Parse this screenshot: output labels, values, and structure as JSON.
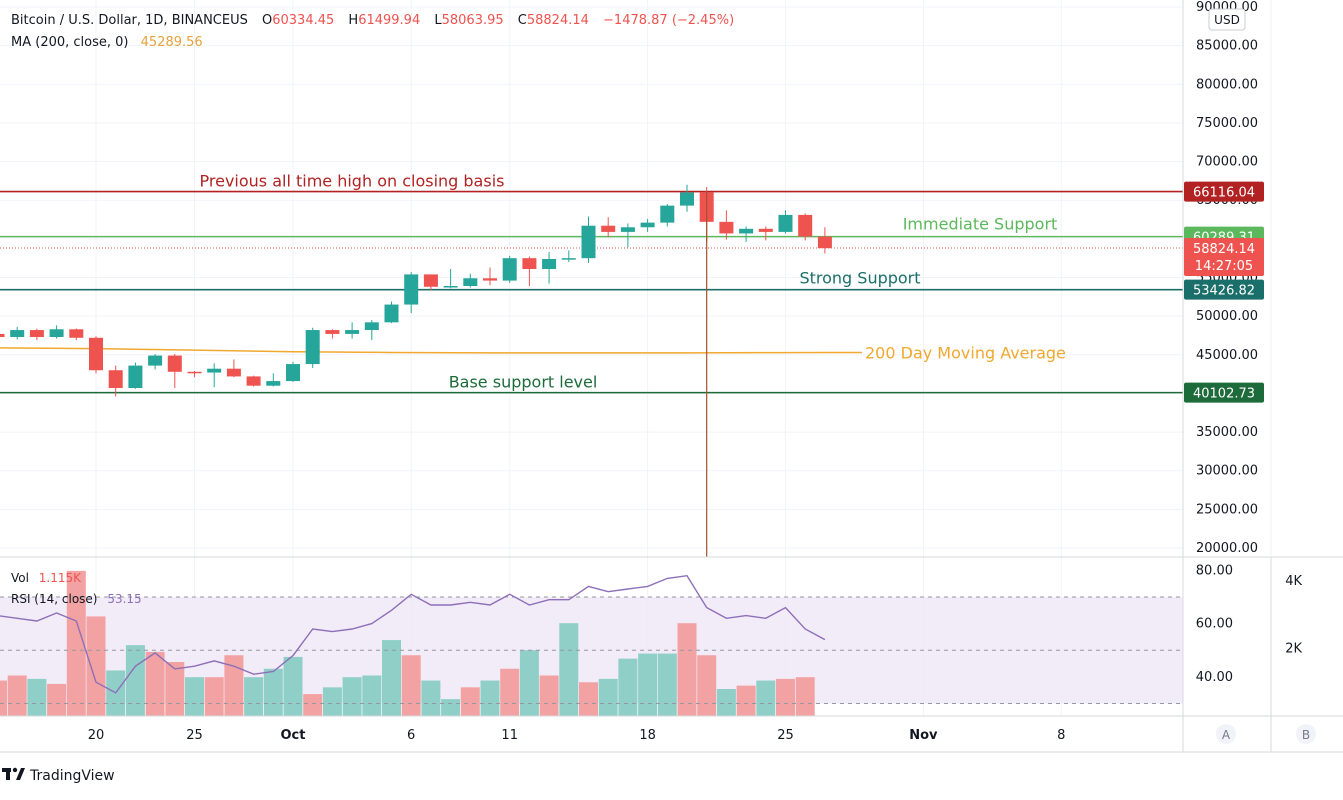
{
  "header": {
    "symbol": "Bitcoin / U.S. Dollar, 1D, BINANCEUS",
    "o_label": "O",
    "o_value": "60334.45",
    "h_label": "H",
    "h_value": "61499.94",
    "l_label": "L",
    "l_value": "58063.95",
    "c_label": "C",
    "c_value": "58824.14",
    "change": "−1478.87 (−2.45%)",
    "ma_label": "MA (200, close, 0)",
    "ma_value": "45289.56"
  },
  "currency_button": "USD",
  "footer": {
    "logo_text": "TradingView",
    "auto_button": "A",
    "b_button": "B"
  },
  "colors": {
    "up": "#26a69a",
    "down": "#ef5350",
    "ath_line": "#b22222",
    "immediate_support": "#5cb85c",
    "strong_support": "#1b6f6a",
    "base_support": "#1d6b3a",
    "ma": "#f0a830",
    "rsi": "#8e6fb8",
    "last_price": "#ef5350"
  },
  "chart_data": [
    {
      "type": "candlestick",
      "title": "Bitcoin / U.S. Dollar, 1D, BINANCEUS",
      "ylim": [
        20000,
        90000
      ],
      "y_ticks": [
        20000,
        25000,
        30000,
        35000,
        40000,
        45000,
        50000,
        55000,
        60000,
        65000,
        70000,
        75000,
        80000,
        85000,
        90000
      ],
      "y_tick_labels": [
        "20000.00",
        "25000.00",
        "30000.00",
        "35000.00",
        "40000.00",
        "45000.00",
        "50000.00",
        "55000.00",
        "60000.00",
        "65000.00",
        "70000.00",
        "75000.00",
        "80000.00",
        "85000.00",
        "90000.00"
      ],
      "x_tick_labels": [
        {
          "label": "20",
          "day": 20
        },
        {
          "label": "25",
          "day": 25
        },
        {
          "label": "Oct",
          "day": 30
        },
        {
          "label": "6",
          "day": 36
        },
        {
          "label": "11",
          "day": 41
        },
        {
          "label": "18",
          "day": 48
        },
        {
          "label": "25",
          "day": 55
        },
        {
          "label": "Nov",
          "day": 62
        },
        {
          "label": "8",
          "day": 69
        }
      ],
      "x_axis_note": "day = days since Sep 1 (Oct 1 = 30)",
      "candles": [
        {
          "day": 15,
          "o": 47700,
          "h": 48500,
          "l": 46800,
          "c": 47300
        },
        {
          "day": 16,
          "o": 47300,
          "h": 48600,
          "l": 47000,
          "c": 48200
        },
        {
          "day": 17,
          "o": 48200,
          "h": 48400,
          "l": 46900,
          "c": 47300
        },
        {
          "day": 18,
          "o": 47300,
          "h": 48800,
          "l": 47100,
          "c": 48300
        },
        {
          "day": 19,
          "o": 48300,
          "h": 48400,
          "l": 46900,
          "c": 47200
        },
        {
          "day": 20,
          "o": 47200,
          "h": 47400,
          "l": 42600,
          "c": 43000
        },
        {
          "day": 21,
          "o": 43000,
          "h": 43600,
          "l": 39600,
          "c": 40700
        },
        {
          "day": 22,
          "o": 40700,
          "h": 44000,
          "l": 40600,
          "c": 43600
        },
        {
          "day": 23,
          "o": 43600,
          "h": 45100,
          "l": 43100,
          "c": 44900
        },
        {
          "day": 24,
          "o": 44900,
          "h": 45100,
          "l": 40700,
          "c": 42800
        },
        {
          "day": 25,
          "o": 42800,
          "h": 42900,
          "l": 42100,
          "c": 42700
        },
        {
          "day": 26,
          "o": 42700,
          "h": 43900,
          "l": 40800,
          "c": 43200
        },
        {
          "day": 27,
          "o": 43200,
          "h": 44400,
          "l": 42100,
          "c": 42200
        },
        {
          "day": 28,
          "o": 42200,
          "h": 42300,
          "l": 40900,
          "c": 41000
        },
        {
          "day": 29,
          "o": 41000,
          "h": 42600,
          "l": 40900,
          "c": 41600
        },
        {
          "day": 30,
          "o": 41600,
          "h": 44100,
          "l": 41500,
          "c": 43800
        },
        {
          "day": 31,
          "o": 43800,
          "h": 48500,
          "l": 43300,
          "c": 48200
        },
        {
          "day": 32,
          "o": 48200,
          "h": 48300,
          "l": 47100,
          "c": 47700
        },
        {
          "day": 33,
          "o": 47700,
          "h": 49200,
          "l": 47100,
          "c": 48200
        },
        {
          "day": 34,
          "o": 48200,
          "h": 49500,
          "l": 46900,
          "c": 49200
        },
        {
          "day": 35,
          "o": 49200,
          "h": 51900,
          "l": 49100,
          "c": 51500
        },
        {
          "day": 36,
          "o": 51500,
          "h": 55700,
          "l": 50400,
          "c": 55400
        },
        {
          "day": 37,
          "o": 55400,
          "h": 55400,
          "l": 53300,
          "c": 53800
        },
        {
          "day": 38,
          "o": 53800,
          "h": 56100,
          "l": 53600,
          "c": 53900
        },
        {
          "day": 39,
          "o": 53900,
          "h": 55500,
          "l": 53700,
          "c": 54900
        },
        {
          "day": 40,
          "o": 54900,
          "h": 56300,
          "l": 54000,
          "c": 54600
        },
        {
          "day": 41,
          "o": 54600,
          "h": 57800,
          "l": 54300,
          "c": 57500
        },
        {
          "day": 42,
          "o": 57500,
          "h": 57700,
          "l": 53900,
          "c": 56100
        },
        {
          "day": 43,
          "o": 56100,
          "h": 58300,
          "l": 54200,
          "c": 57400
        },
        {
          "day": 44,
          "o": 57400,
          "h": 58500,
          "l": 57000,
          "c": 57500
        },
        {
          "day": 45,
          "o": 57500,
          "h": 62900,
          "l": 56900,
          "c": 61700
        },
        {
          "day": 46,
          "o": 61700,
          "h": 62800,
          "l": 60200,
          "c": 60900
        },
        {
          "day": 47,
          "o": 60900,
          "h": 62000,
          "l": 58900,
          "c": 61500
        },
        {
          "day": 48,
          "o": 61500,
          "h": 62600,
          "l": 60900,
          "c": 62100
        },
        {
          "day": 49,
          "o": 62100,
          "h": 64500,
          "l": 61600,
          "c": 64300
        },
        {
          "day": 50,
          "o": 64300,
          "h": 67000,
          "l": 63500,
          "c": 66000
        },
        {
          "day": 51,
          "o": 66000,
          "h": 66700,
          "l": 59600,
          "c": 62200
        },
        {
          "day": 52,
          "o": 62200,
          "h": 63700,
          "l": 59900,
          "c": 60700
        },
        {
          "day": 53,
          "o": 60700,
          "h": 61600,
          "l": 59600,
          "c": 61300
        },
        {
          "day": 54,
          "o": 61300,
          "h": 61600,
          "l": 59800,
          "c": 60900
        },
        {
          "day": 55,
          "o": 60900,
          "h": 63700,
          "l": 60700,
          "c": 63100
        },
        {
          "day": 56,
          "o": 63100,
          "h": 63300,
          "l": 59800,
          "c": 60300
        },
        {
          "day": 57,
          "o": 60300,
          "h": 61500,
          "l": 58100,
          "c": 58800
        }
      ],
      "levels": [
        {
          "value": 66116.04,
          "label": "66116.04",
          "annotation": "Previous all time high on closing basis",
          "color_key": "ath_line"
        },
        {
          "value": 60289.31,
          "label": "60289.31",
          "annotation": "Immediate Support",
          "color_key": "immediate_support"
        },
        {
          "value": 53426.82,
          "label": "53426.82",
          "annotation": "Strong Support",
          "color_key": "strong_support"
        },
        {
          "value": 40102.73,
          "label": "40102.73",
          "annotation": "Base support level",
          "color_key": "base_support"
        }
      ],
      "last_price": {
        "value": 58824.14,
        "label": "58824.14",
        "countdown": "14:27:05"
      },
      "moving_average": {
        "name": "MA (200, close, 0)",
        "annotation": "200 Day Moving Average",
        "points": [
          [
            15,
            45900
          ],
          [
            20,
            45800
          ],
          [
            25,
            45600
          ],
          [
            30,
            45400
          ],
          [
            35,
            45300
          ],
          [
            40,
            45250
          ],
          [
            45,
            45250
          ],
          [
            50,
            45250
          ],
          [
            55,
            45280
          ],
          [
            57,
            45290
          ]
        ]
      },
      "marker_day": 51
    },
    {
      "type": "bar",
      "title": "Vol",
      "value_label": "1.115K",
      "ylim": [
        0,
        4500
      ],
      "y_ticks": [
        2000,
        4000
      ],
      "y_tick_labels": [
        "2K",
        "4K"
      ],
      "values": [
        {
          "day": 15,
          "v": 1050,
          "up": false
        },
        {
          "day": 16,
          "v": 1200,
          "up": false
        },
        {
          "day": 17,
          "v": 1100,
          "up": true
        },
        {
          "day": 18,
          "v": 950,
          "up": false
        },
        {
          "day": 19,
          "v": 4300,
          "up": false
        },
        {
          "day": 20,
          "v": 2950,
          "up": false
        },
        {
          "day": 21,
          "v": 1350,
          "up": true
        },
        {
          "day": 22,
          "v": 2100,
          "up": true
        },
        {
          "day": 23,
          "v": 1900,
          "up": false
        },
        {
          "day": 24,
          "v": 1600,
          "up": false
        },
        {
          "day": 25,
          "v": 1150,
          "up": true
        },
        {
          "day": 26,
          "v": 1150,
          "up": false
        },
        {
          "day": 27,
          "v": 1800,
          "up": false
        },
        {
          "day": 28,
          "v": 1150,
          "up": true
        },
        {
          "day": 29,
          "v": 1400,
          "up": true
        },
        {
          "day": 30,
          "v": 1750,
          "up": true
        },
        {
          "day": 31,
          "v": 650,
          "up": false
        },
        {
          "day": 32,
          "v": 850,
          "up": true
        },
        {
          "day": 33,
          "v": 1150,
          "up": true
        },
        {
          "day": 34,
          "v": 1200,
          "up": true
        },
        {
          "day": 35,
          "v": 2250,
          "up": true
        },
        {
          "day": 36,
          "v": 1800,
          "up": false
        },
        {
          "day": 37,
          "v": 1050,
          "up": true
        },
        {
          "day": 38,
          "v": 500,
          "up": true
        },
        {
          "day": 39,
          "v": 850,
          "up": false
        },
        {
          "day": 40,
          "v": 1050,
          "up": true
        },
        {
          "day": 41,
          "v": 1400,
          "up": false
        },
        {
          "day": 42,
          "v": 1950,
          "up": true
        },
        {
          "day": 43,
          "v": 1200,
          "up": false
        },
        {
          "day": 44,
          "v": 2750,
          "up": true
        },
        {
          "day": 45,
          "v": 1000,
          "up": false
        },
        {
          "day": 46,
          "v": 1100,
          "up": true
        },
        {
          "day": 47,
          "v": 1700,
          "up": true
        },
        {
          "day": 48,
          "v": 1850,
          "up": true
        },
        {
          "day": 49,
          "v": 1850,
          "up": true
        },
        {
          "day": 50,
          "v": 2750,
          "up": false
        },
        {
          "day": 51,
          "v": 1800,
          "up": false
        },
        {
          "day": 52,
          "v": 800,
          "up": true
        },
        {
          "day": 53,
          "v": 900,
          "up": false
        },
        {
          "day": 54,
          "v": 1050,
          "up": true
        },
        {
          "day": 55,
          "v": 1100,
          "up": false
        },
        {
          "day": 56,
          "v": 1150,
          "up": false
        }
      ]
    },
    {
      "type": "line",
      "title": "RSI (14, close)",
      "value_label": "53.15",
      "ylim": [
        28,
        82
      ],
      "y_ticks": [
        40,
        60,
        80
      ],
      "y_tick_labels": [
        "40.00",
        "60.00",
        "80.00"
      ],
      "bands": [
        30,
        70
      ],
      "points": [
        [
          15,
          63
        ],
        [
          16,
          62
        ],
        [
          17,
          61
        ],
        [
          18,
          64
        ],
        [
          19,
          61
        ],
        [
          20,
          38
        ],
        [
          21,
          34
        ],
        [
          22,
          44
        ],
        [
          23,
          49
        ],
        [
          24,
          43
        ],
        [
          25,
          44
        ],
        [
          26,
          46
        ],
        [
          27,
          44
        ],
        [
          28,
          41
        ],
        [
          29,
          42
        ],
        [
          30,
          48
        ],
        [
          31,
          58
        ],
        [
          32,
          57
        ],
        [
          33,
          58
        ],
        [
          34,
          60
        ],
        [
          35,
          65
        ],
        [
          36,
          71
        ],
        [
          37,
          67
        ],
        [
          38,
          67
        ],
        [
          39,
          68
        ],
        [
          40,
          67
        ],
        [
          41,
          71
        ],
        [
          42,
          67
        ],
        [
          43,
          69
        ],
        [
          44,
          69
        ],
        [
          45,
          74
        ],
        [
          46,
          72
        ],
        [
          47,
          73
        ],
        [
          48,
          74
        ],
        [
          49,
          77
        ],
        [
          50,
          78
        ],
        [
          51,
          66
        ],
        [
          52,
          62
        ],
        [
          53,
          63
        ],
        [
          54,
          62
        ],
        [
          55,
          66
        ],
        [
          56,
          58
        ],
        [
          57,
          54
        ]
      ]
    }
  ]
}
